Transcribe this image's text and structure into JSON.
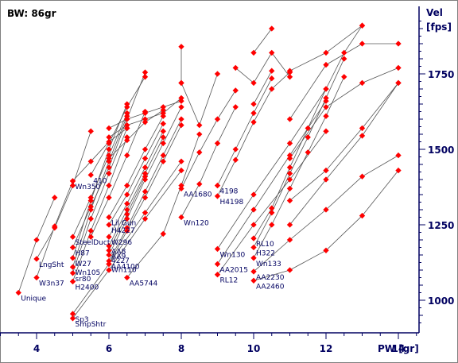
{
  "chart_data": {
    "type": "line",
    "title": "BW:  86gr",
    "xlabel": "PW [gr]",
    "ylabel_line1": "Vel",
    "ylabel_line2": "[fps]",
    "xlim": [
      3,
      14.5
    ],
    "ylim": [
      905,
      1940
    ],
    "x_ticks": [
      4,
      6,
      8,
      10,
      12,
      14
    ],
    "y_ticks": [
      1000,
      1250,
      1500,
      1750
    ],
    "y_tick_labels": [
      "1000",
      "1250",
      "1500",
      "1750"
    ],
    "grid": false,
    "colors": {
      "axis": "#000060",
      "line": "#555555",
      "point": "#ff0000",
      "text": "#000060"
    },
    "series": [
      {
        "label": "Unique",
        "points": [
          [
            3.5,
            1025
          ],
          [
            4.0,
            1200
          ],
          [
            4.5,
            1340
          ]
        ]
      },
      {
        "label": "W3n37",
        "points": [
          [
            4.0,
            1075
          ],
          [
            4.5,
            1245
          ],
          [
            5.0,
            1395
          ]
        ]
      },
      {
        "label": "LngSht",
        "points": [
          [
            4.0,
            1137
          ],
          [
            4.5,
            1240
          ],
          [
            5.0,
            1380
          ],
          [
            5.5,
            1560
          ]
        ]
      },
      {
        "label": "H2400",
        "points": [
          [
            5.0,
            1062
          ],
          [
            5.5,
            1230
          ],
          [
            6.0,
            1380
          ],
          [
            6.5,
            1540
          ]
        ]
      },
      {
        "label": "sr80",
        "points": [
          [
            5.0,
            1090
          ],
          [
            5.5,
            1270
          ],
          [
            6.0,
            1420
          ],
          [
            6.5,
            1570
          ]
        ]
      },
      {
        "label": "Wn105",
        "points": [
          [
            5.0,
            1110
          ],
          [
            5.5,
            1300
          ],
          [
            6.0,
            1460
          ],
          [
            6.5,
            1610
          ]
        ]
      },
      {
        "label": "W27",
        "points": [
          [
            5.0,
            1140
          ],
          [
            5.5,
            1330
          ],
          [
            6.0,
            1500
          ],
          [
            6.5,
            1650
          ]
        ]
      },
      {
        "label": "H87",
        "points": [
          [
            5.0,
            1175
          ],
          [
            5.5,
            1310
          ],
          [
            6.0,
            1440
          ],
          [
            6.5,
            1600
          ],
          [
            7.0,
            1755
          ]
        ]
      },
      {
        "label": "Duct",
        "points": [
          [
            5.5,
            1210
          ],
          [
            6.0,
            1340
          ],
          [
            6.5,
            1480
          ],
          [
            7.0,
            1625
          ]
        ]
      },
      {
        "label": "Steel",
        "points": [
          [
            5.0,
            1210
          ],
          [
            5.5,
            1340
          ],
          [
            6.0,
            1480
          ],
          [
            6.5,
            1620
          ]
        ]
      },
      {
        "label": "Wn350",
        "points": [
          [
            5.0,
            1395
          ],
          [
            5.5,
            1460
          ],
          [
            6.0,
            1525
          ],
          [
            6.5,
            1570
          ]
        ]
      },
      {
        "label": "410",
        "points": [
          [
            5.5,
            1415
          ],
          [
            6.0,
            1520
          ],
          [
            6.5,
            1640
          ],
          [
            7.0,
            1740
          ]
        ]
      },
      {
        "label": "Lil Gun",
        "points": [
          [
            6.0,
            1275
          ],
          [
            6.5,
            1380
          ],
          [
            7.0,
            1500
          ],
          [
            7.5,
            1610
          ]
        ]
      },
      {
        "label": "H4227",
        "points": [
          [
            6.0,
            1250
          ],
          [
            6.5,
            1350
          ],
          [
            7.0,
            1470
          ],
          [
            7.5,
            1585
          ]
        ]
      },
      {
        "label": "W296",
        "points": [
          [
            6.0,
            1210
          ],
          [
            6.5,
            1320
          ],
          [
            7.0,
            1440
          ],
          [
            7.5,
            1560
          ]
        ]
      },
      {
        "label": "AA8",
        "points": [
          [
            6.0,
            1180
          ],
          [
            6.5,
            1300
          ],
          [
            7.0,
            1420
          ],
          [
            7.5,
            1540
          ]
        ]
      },
      {
        "label": "AA9",
        "points": [
          [
            6.0,
            1165
          ],
          [
            6.5,
            1285
          ],
          [
            7.0,
            1410
          ]
        ]
      },
      {
        "label": "4227",
        "points": [
          [
            6.0,
            1150
          ],
          [
            6.5,
            1270
          ],
          [
            7.0,
            1400
          ],
          [
            7.5,
            1520
          ],
          [
            8.0,
            1640
          ]
        ]
      },
      {
        "label": "AA4100",
        "points": [
          [
            6.0,
            1130
          ],
          [
            6.5,
            1240
          ],
          [
            7.0,
            1360
          ],
          [
            7.5,
            1480
          ],
          [
            8.0,
            1600
          ]
        ]
      },
      {
        "label": "Wn110",
        "points": [
          [
            6.0,
            1120
          ],
          [
            6.5,
            1230
          ],
          [
            7.0,
            1340
          ],
          [
            7.5,
            1460
          ],
          [
            8.0,
            1580
          ]
        ]
      },
      {
        "label": "AA5744",
        "points": [
          [
            6.5,
            1075
          ],
          [
            7.5,
            1220
          ],
          [
            8.0,
            1380
          ],
          [
            8.5,
            1550
          ]
        ]
      },
      {
        "label": "Sp3",
        "points": [
          [
            5.0,
            955
          ],
          [
            6.0,
            1120
          ],
          [
            7.0,
            1290
          ],
          [
            8.0,
            1460
          ]
        ]
      },
      {
        "label": "SmpShtr",
        "points": [
          [
            5.0,
            940
          ],
          [
            6.0,
            1100
          ],
          [
            7.0,
            1270
          ],
          [
            8.0,
            1430
          ]
        ]
      },
      {
        "label": "AA1680",
        "points": [
          [
            8.0,
            1370
          ],
          [
            8.5,
            1490
          ],
          [
            9.0,
            1600
          ],
          [
            9.5,
            1695
          ]
        ]
      },
      {
        "label": "Wn120",
        "points": [
          [
            8.0,
            1275
          ],
          [
            8.5,
            1385
          ],
          [
            9.0,
            1520
          ],
          [
            9.5,
            1640
          ]
        ]
      },
      {
        "label": "4198",
        "points": [
          [
            9.0,
            1380
          ],
          [
            9.5,
            1500
          ],
          [
            10.0,
            1620
          ],
          [
            10.5,
            1735
          ]
        ]
      },
      {
        "label": "H4198",
        "points": [
          [
            9.0,
            1345
          ],
          [
            9.5,
            1465
          ],
          [
            10.0,
            1590
          ],
          [
            10.5,
            1700
          ],
          [
            11.0,
            1755
          ]
        ]
      },
      {
        "label": "Wn130",
        "points": [
          [
            9.0,
            1170
          ],
          [
            10.0,
            1350
          ],
          [
            11.0,
            1520
          ],
          [
            12.0,
            1700
          ]
        ]
      },
      {
        "label": "AA2015",
        "points": [
          [
            9.0,
            1120
          ],
          [
            10.0,
            1300
          ],
          [
            11.0,
            1480
          ],
          [
            12.0,
            1660
          ]
        ]
      },
      {
        "label": "RL12",
        "points": [
          [
            9.0,
            1085
          ],
          [
            10.0,
            1250
          ],
          [
            11.0,
            1400
          ],
          [
            12.0,
            1560
          ]
        ]
      },
      {
        "label": "RL10",
        "points": [
          [
            10.0,
            1205
          ],
          [
            10.5,
            1305
          ],
          [
            11.0,
            1440
          ],
          [
            11.5,
            1570
          ],
          [
            12.0,
            1700
          ],
          [
            12.5,
            1820
          ],
          [
            13.0,
            1910
          ]
        ]
      },
      {
        "label": "H322",
        "points": [
          [
            10.0,
            1175
          ],
          [
            10.5,
            1290
          ],
          [
            11.0,
            1420
          ],
          [
            11.5,
            1540
          ],
          [
            12.0,
            1670
          ],
          [
            12.5,
            1800
          ]
        ]
      },
      {
        "label": "Wn133",
        "points": [
          [
            10.0,
            1140
          ],
          [
            10.5,
            1250
          ],
          [
            11.0,
            1370
          ],
          [
            11.5,
            1490
          ],
          [
            12.0,
            1610
          ],
          [
            12.5,
            1740
          ]
        ]
      },
      {
        "label": "AA2230",
        "points": [
          [
            10.0,
            1095
          ],
          [
            11.0,
            1200
          ],
          [
            12.0,
            1300
          ],
          [
            13.0,
            1410
          ],
          [
            14.0,
            1480
          ]
        ]
      },
      {
        "label": "AA2460",
        "points": [
          [
            10.0,
            1065
          ],
          [
            11.0,
            1100
          ],
          [
            12.0,
            1165
          ],
          [
            13.0,
            1280
          ],
          [
            14.0,
            1430
          ]
        ]
      }
    ],
    "extra_series": [
      {
        "points": [
          [
            6.0,
            1570
          ],
          [
            6.5,
            1600
          ],
          [
            7.0,
            1620
          ],
          [
            7.5,
            1640
          ],
          [
            8.0,
            1660
          ]
        ]
      },
      {
        "points": [
          [
            6.0,
            1540
          ],
          [
            6.5,
            1580
          ],
          [
            7.0,
            1600
          ],
          [
            7.5,
            1620
          ],
          [
            8.0,
            1670
          ]
        ]
      },
      {
        "points": [
          [
            6.0,
            1470
          ],
          [
            6.5,
            1530
          ],
          [
            7.0,
            1590
          ],
          [
            7.5,
            1630
          ]
        ]
      },
      {
        "points": [
          [
            8.0,
            1840
          ],
          [
            8.0,
            1720
          ]
        ]
      },
      {
        "points": [
          [
            8.0,
            1720
          ],
          [
            8.5,
            1580
          ],
          [
            9.0,
            1750
          ]
        ]
      },
      {
        "points": [
          [
            9.5,
            1770
          ],
          [
            10.0,
            1720
          ],
          [
            10.5,
            1820
          ],
          [
            11.0,
            1740
          ]
        ]
      },
      {
        "points": [
          [
            10.0,
            1820
          ],
          [
            10.5,
            1900
          ]
        ]
      },
      {
        "points": [
          [
            10.0,
            1650
          ],
          [
            10.5,
            1760
          ]
        ]
      },
      {
        "points": [
          [
            11.0,
            1760
          ],
          [
            12.0,
            1820
          ],
          [
            13.0,
            1910
          ]
        ]
      },
      {
        "points": [
          [
            11.0,
            1600
          ],
          [
            12.0,
            1780
          ],
          [
            13.0,
            1850
          ],
          [
            14.0,
            1850
          ]
        ]
      },
      {
        "points": [
          [
            11.0,
            1470
          ],
          [
            12.0,
            1640
          ],
          [
            13.0,
            1720
          ],
          [
            14.0,
            1770
          ]
        ]
      },
      {
        "points": [
          [
            11.0,
            1330
          ],
          [
            12.0,
            1430
          ],
          [
            13.0,
            1570
          ],
          [
            14.0,
            1720
          ]
        ]
      },
      {
        "points": [
          [
            11.0,
            1250
          ],
          [
            12.0,
            1400
          ],
          [
            13.0,
            1545
          ],
          [
            14.0,
            1720
          ]
        ]
      }
    ]
  }
}
